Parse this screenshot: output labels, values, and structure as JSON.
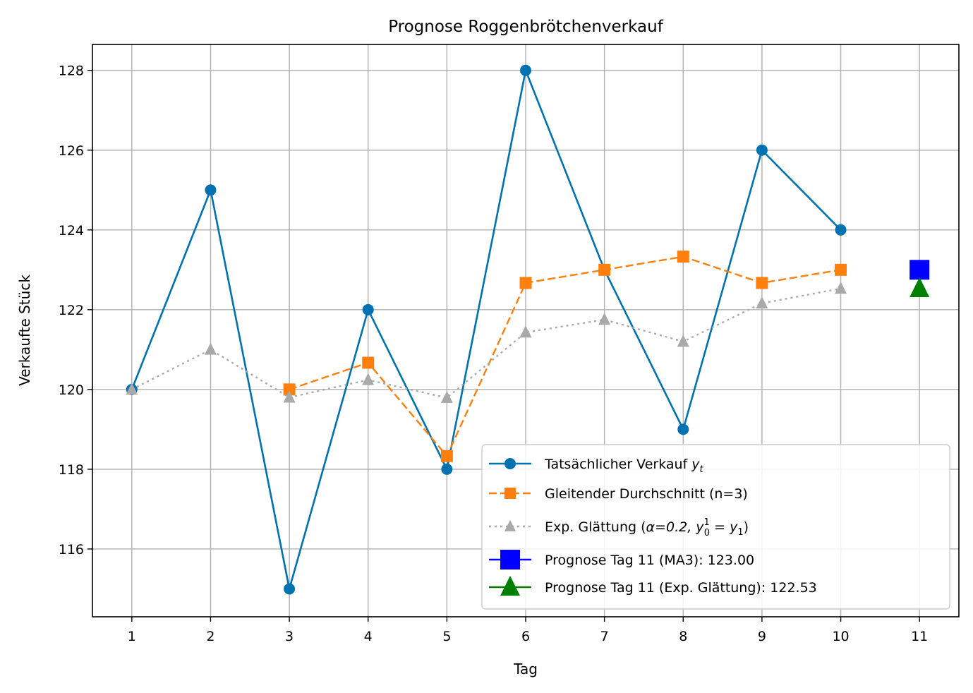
{
  "chart_data": {
    "type": "line",
    "title": "Prognose Roggenbrötchenverkauf",
    "xlabel": "Tag",
    "ylabel": "Verkaufte Stück",
    "xlim": [
      0.5,
      11.5
    ],
    "ylim": [
      114.3,
      128.65
    ],
    "x_ticks": [
      1,
      2,
      3,
      4,
      5,
      6,
      7,
      8,
      9,
      10,
      11
    ],
    "y_ticks": [
      116,
      118,
      120,
      122,
      124,
      126,
      128
    ],
    "grid": true,
    "legend_position": "lower-right",
    "series": [
      {
        "name": "Tatsächlicher Verkauf y_t",
        "legend_main": "Tatsächlicher Verkauf ",
        "legend_math": "y",
        "legend_sub": "t",
        "x": [
          1,
          2,
          3,
          4,
          5,
          6,
          7,
          8,
          9,
          10
        ],
        "values": [
          120,
          125,
          115,
          122,
          118,
          128,
          123,
          119,
          126,
          124
        ],
        "color": "#0072b2",
        "linestyle": "solid",
        "marker": "circle"
      },
      {
        "name": "Gleitender Durchschnitt (n=3)",
        "x": [
          3,
          4,
          5,
          6,
          7,
          8,
          9,
          10
        ],
        "values": [
          120.0,
          120.67,
          118.33,
          122.67,
          123.0,
          123.33,
          122.67,
          123.0
        ],
        "color": "#ff7f0e",
        "linestyle": "dashed",
        "marker": "square"
      },
      {
        "name": "Exp. Glättung (α=0.2, y_0^1 = y_1)",
        "legend_main": "Exp. Glättung (",
        "legend_math": "α=0.2, y",
        "legend_sup": "1",
        "legend_sub": "0",
        "legend_tail": " = y",
        "legend_tail_sub": "1",
        "legend_close": ")",
        "x": [
          1,
          2,
          3,
          4,
          5,
          6,
          7,
          8,
          9,
          10
        ],
        "values": [
          120.0,
          121.0,
          119.8,
          120.24,
          119.79,
          121.43,
          121.75,
          121.2,
          122.16,
          122.53
        ],
        "color": "#a9a9a9",
        "linestyle": "dotted",
        "marker": "triangle"
      }
    ],
    "forecasts": [
      {
        "name": "Prognose Tag 11 (MA3): 123.00",
        "x": 11,
        "value": 123.0,
        "color": "#0000ff",
        "marker": "square"
      },
      {
        "name": "Prognose Tag 11 (Exp. Glättung): 122.53",
        "x": 11,
        "value": 122.53,
        "color": "#008000",
        "marker": "triangle"
      }
    ]
  }
}
